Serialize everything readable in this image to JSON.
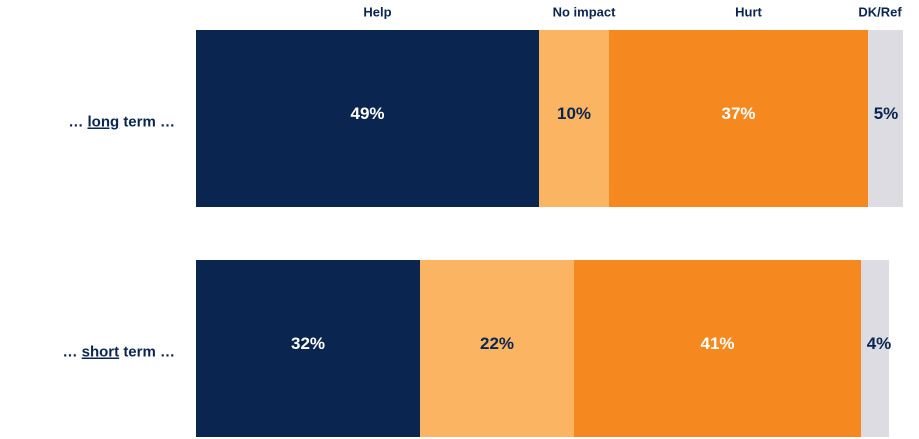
{
  "chart_data": {
    "type": "stacked-bar-horizontal",
    "categories": [
      [
        "…",
        "long",
        "term …"
      ],
      [
        "…",
        "short",
        "term …"
      ]
    ],
    "series": [
      {
        "name": "Help",
        "color": "#0a2650",
        "label_color": "#ffffff",
        "values": [
          49,
          32
        ],
        "value_labels": [
          "49%",
          "32%"
        ]
      },
      {
        "name": "No impact",
        "color": "#fbb462",
        "label_color": "#0a2650",
        "values": [
          10,
          22
        ],
        "value_labels": [
          "10%",
          "22%"
        ]
      },
      {
        "name": "Hurt",
        "color": "#f5891f",
        "label_color": "#ffffff",
        "values": [
          37,
          41
        ],
        "value_labels": [
          "37%",
          "41%"
        ]
      },
      {
        "name": "DK/Ref",
        "color": "#dcdce2",
        "label_color": "#0a2650",
        "values": [
          5,
          4
        ],
        "value_labels": [
          "5%",
          "4%"
        ]
      }
    ]
  }
}
